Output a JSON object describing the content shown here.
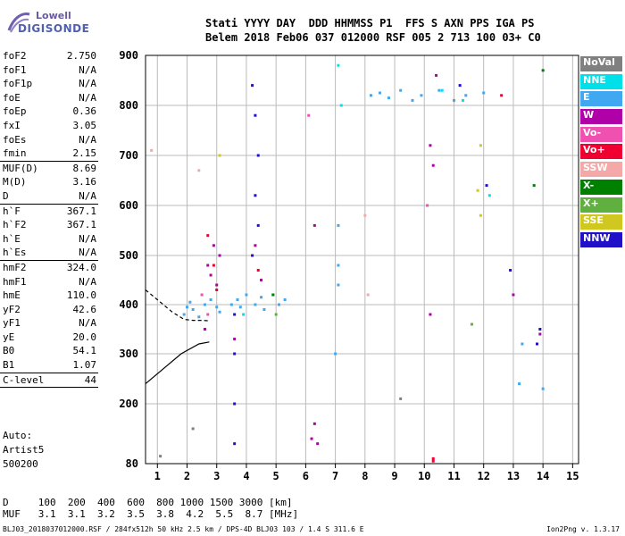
{
  "logo": {
    "line1": "Lowell",
    "line2": "DIGISONDE"
  },
  "header": {
    "line1": "Stati YYYY DAY  DDD HHMMSS P1  FFS S AXN PPS IGA PS",
    "line2": "Belem 2018 Feb06 037 012000 RSF 005 2 713 100 03+ C0"
  },
  "params": [
    {
      "k": "foF2",
      "v": "2.750"
    },
    {
      "k": "foF1",
      "v": "N/A"
    },
    {
      "k": "foF1p",
      "v": "N/A"
    },
    {
      "k": "foE",
      "v": "N/A"
    },
    {
      "k": "foEp",
      "v": "0.36"
    },
    {
      "k": "fxI",
      "v": "3.05"
    },
    {
      "k": "foEs",
      "v": "N/A"
    },
    {
      "k": "fmin",
      "v": "2.15"
    },
    {
      "sep": true
    },
    {
      "k": "MUF(D)",
      "v": "8.69"
    },
    {
      "k": "M(D)",
      "v": "3.16"
    },
    {
      "k": "D",
      "v": "N/A"
    },
    {
      "sep": true
    },
    {
      "k": "h`F",
      "v": "367.1"
    },
    {
      "k": "h`F2",
      "v": "367.1"
    },
    {
      "k": "h`E",
      "v": "N/A"
    },
    {
      "k": "h`Es",
      "v": "N/A"
    },
    {
      "sep": true
    },
    {
      "k": "hmF2",
      "v": "324.0"
    },
    {
      "k": "hmF1",
      "v": "N/A"
    },
    {
      "k": "hmE",
      "v": "110.0"
    },
    {
      "k": "yF2",
      "v": "42.6"
    },
    {
      "k": "yF1",
      "v": "N/A"
    },
    {
      "k": "yE",
      "v": "20.0"
    },
    {
      "k": "B0",
      "v": "54.1"
    },
    {
      "k": "B1",
      "v": "1.07"
    },
    {
      "sep": true
    },
    {
      "k": "C-level",
      "v": "44"
    },
    {
      "sep": true
    }
  ],
  "auto": {
    "l1": "Auto:",
    "l2": "Artist5",
    "l3": "500200"
  },
  "legend": [
    {
      "label": "NoVal",
      "color": "#808080"
    },
    {
      "label": "NNE",
      "color": "#00e0e8"
    },
    {
      "label": "E",
      "color": "#40a8f0"
    },
    {
      "label": "W",
      "color": "#b000a8"
    },
    {
      "label": "Vo-",
      "color": "#f050b0"
    },
    {
      "label": "Vo+",
      "color": "#f00030"
    },
    {
      "label": "SSW",
      "color": "#f4a8a8"
    },
    {
      "label": "X-",
      "color": "#008000"
    },
    {
      "label": "X+",
      "color": "#60b040"
    },
    {
      "label": "SSE",
      "color": "#d0c820"
    },
    {
      "label": "NNW",
      "color": "#2010c8"
    }
  ],
  "bottom": {
    "row1": "D     100  200  400  600  800 1000 1500 3000 [km]",
    "row2": "MUF   3.1  3.1  3.2  3.5  3.8  4.2  5.5  8.7 [MHz]"
  },
  "footer": {
    "left": "BLJ03_2018037012000.RSF / 284fx512h 50 kHz 2.5 km / DPS-4D BLJ03 103 / 1.4 S 311.6 E",
    "right": "Ion2Png v. 1.3.17"
  },
  "chart_data": {
    "type": "scatter",
    "xlabel": "",
    "ylabel": "",
    "xlim": [
      0.6,
      15.2
    ],
    "ylim": [
      80,
      900
    ],
    "x_ticks": [
      1,
      2,
      3,
      4,
      5,
      6,
      7,
      8,
      9,
      10,
      11,
      12,
      13,
      14,
      15
    ],
    "y_ticks": [
      80,
      200,
      300,
      400,
      500,
      600,
      700,
      800,
      900
    ],
    "grid": true,
    "legend_position": "right",
    "series": [
      {
        "name": "E",
        "color": "#40a8f0",
        "points": [
          [
            1.9,
            380
          ],
          [
            2.0,
            395
          ],
          [
            2.1,
            405
          ],
          [
            2.2,
            390
          ],
          [
            2.4,
            375
          ],
          [
            2.6,
            400
          ],
          [
            2.8,
            410
          ],
          [
            3.0,
            395
          ],
          [
            3.1,
            385
          ],
          [
            3.5,
            400
          ],
          [
            3.7,
            410
          ],
          [
            3.8,
            395
          ],
          [
            4.0,
            420
          ],
          [
            4.3,
            400
          ],
          [
            4.5,
            415
          ],
          [
            4.6,
            390
          ],
          [
            4.9,
            420
          ],
          [
            5.1,
            400
          ],
          [
            5.3,
            410
          ],
          [
            7.1,
            560
          ],
          [
            7.1,
            480
          ],
          [
            7.1,
            440
          ],
          [
            7.0,
            300
          ],
          [
            8.2,
            820
          ],
          [
            8.5,
            825
          ],
          [
            8.8,
            815
          ],
          [
            9.2,
            830
          ],
          [
            9.6,
            810
          ],
          [
            9.9,
            820
          ],
          [
            10.5,
            830
          ],
          [
            11.0,
            810
          ],
          [
            11.4,
            820
          ],
          [
            12.0,
            825
          ],
          [
            13.2,
            240
          ],
          [
            13.3,
            320
          ],
          [
            14.0,
            230
          ]
        ]
      },
      {
        "name": "W",
        "color": "#b000a8",
        "points": [
          [
            2.7,
            480
          ],
          [
            2.8,
            460
          ],
          [
            2.9,
            520
          ],
          [
            3.0,
            440
          ],
          [
            3.1,
            500
          ],
          [
            2.6,
            350
          ],
          [
            3.6,
            330
          ],
          [
            4.3,
            520
          ],
          [
            4.5,
            450
          ],
          [
            6.2,
            130
          ],
          [
            6.3,
            160
          ],
          [
            6.4,
            120
          ],
          [
            6.3,
            560
          ],
          [
            10.2,
            720
          ],
          [
            10.3,
            680
          ],
          [
            10.4,
            860
          ],
          [
            10.2,
            380
          ],
          [
            13.0,
            420
          ],
          [
            13.9,
            340
          ]
        ]
      },
      {
        "name": "Vo+",
        "color": "#f00030",
        "points": [
          [
            2.7,
            540
          ],
          [
            2.9,
            480
          ],
          [
            3.0,
            430
          ],
          [
            4.4,
            470
          ],
          [
            10.3,
            85
          ],
          [
            10.3,
            90
          ],
          [
            12.6,
            820
          ]
        ]
      },
      {
        "name": "NNW",
        "color": "#2010c8",
        "points": [
          [
            3.6,
            380
          ],
          [
            3.6,
            300
          ],
          [
            3.6,
            200
          ],
          [
            3.6,
            120
          ],
          [
            4.2,
            840
          ],
          [
            4.3,
            780
          ],
          [
            4.4,
            700
          ],
          [
            4.3,
            620
          ],
          [
            4.4,
            560
          ],
          [
            4.2,
            500
          ],
          [
            11.2,
            840
          ],
          [
            12.1,
            640
          ],
          [
            12.9,
            470
          ],
          [
            13.9,
            350
          ],
          [
            13.8,
            320
          ]
        ]
      },
      {
        "name": "NNE",
        "color": "#00e0e8",
        "points": [
          [
            3.9,
            380
          ],
          [
            7.1,
            880
          ],
          [
            7.2,
            800
          ],
          [
            10.6,
            830
          ],
          [
            11.3,
            810
          ],
          [
            12.2,
            620
          ]
        ]
      },
      {
        "name": "Vo-",
        "color": "#f050b0",
        "points": [
          [
            2.5,
            420
          ],
          [
            2.7,
            380
          ],
          [
            6.1,
            780
          ],
          [
            10.1,
            600
          ]
        ]
      },
      {
        "name": "X-",
        "color": "#008000",
        "points": [
          [
            4.9,
            420
          ],
          [
            13.7,
            640
          ],
          [
            14.0,
            870
          ]
        ]
      },
      {
        "name": "X+",
        "color": "#60b040",
        "points": [
          [
            5.0,
            380
          ],
          [
            11.6,
            360
          ]
        ]
      },
      {
        "name": "SSE",
        "color": "#d0c820",
        "points": [
          [
            3.1,
            700
          ],
          [
            11.9,
            720
          ],
          [
            11.9,
            580
          ],
          [
            11.8,
            630
          ]
        ]
      },
      {
        "name": "SSW",
        "color": "#f4a8a8",
        "points": [
          [
            0.8,
            710
          ],
          [
            2.4,
            670
          ],
          [
            8.0,
            580
          ],
          [
            8.1,
            420
          ]
        ]
      },
      {
        "name": "NoVal",
        "color": "#808080",
        "points": [
          [
            1.1,
            95
          ],
          [
            2.2,
            150
          ],
          [
            9.2,
            210
          ]
        ]
      }
    ],
    "profile_lines": {
      "hmF2_profile": [
        [
          0.6,
          240
        ],
        [
          1.2,
          270
        ],
        [
          1.8,
          300
        ],
        [
          2.4,
          320
        ],
        [
          2.75,
          324
        ]
      ],
      "trace": [
        [
          0.6,
          430
        ],
        [
          1.0,
          410
        ],
        [
          1.5,
          385
        ],
        [
          1.9,
          370
        ],
        [
          2.2,
          368
        ],
        [
          2.5,
          368
        ],
        [
          2.75,
          367
        ]
      ]
    }
  }
}
